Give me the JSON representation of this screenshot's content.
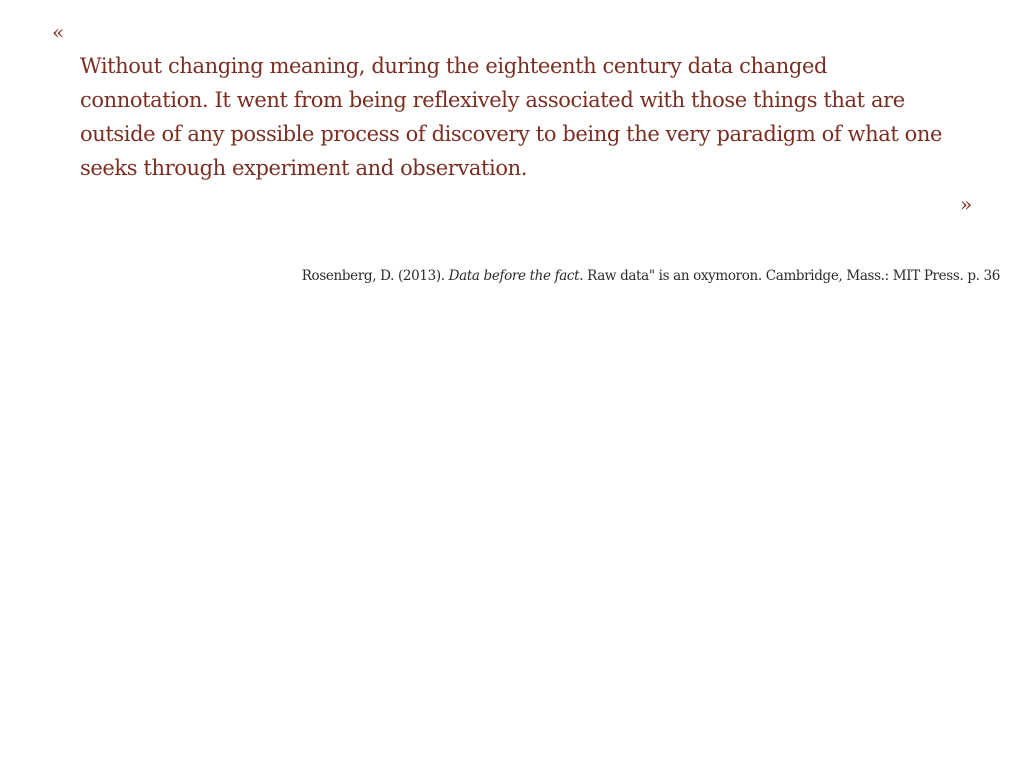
{
  "quote": {
    "open_mark": "«",
    "close_mark": "»",
    "text": "Without changing meaning, during the eighteenth century data changed connotation. It went from being reflexively associated with those things that are outside of any possible process of discovery to being the very paradigm of what one seeks through experiment and observation."
  },
  "citation": {
    "prefix": "Rosenberg, D. (2013). ",
    "title": "Data before the fact",
    "suffix": ". Raw data\" is an oxymoron. Cambridge, Mass.: MIT Press. p. 36"
  },
  "colors": {
    "quote_text": "#7a2e22",
    "citation_text": "#2b2b2b",
    "background": "#ffffff"
  }
}
